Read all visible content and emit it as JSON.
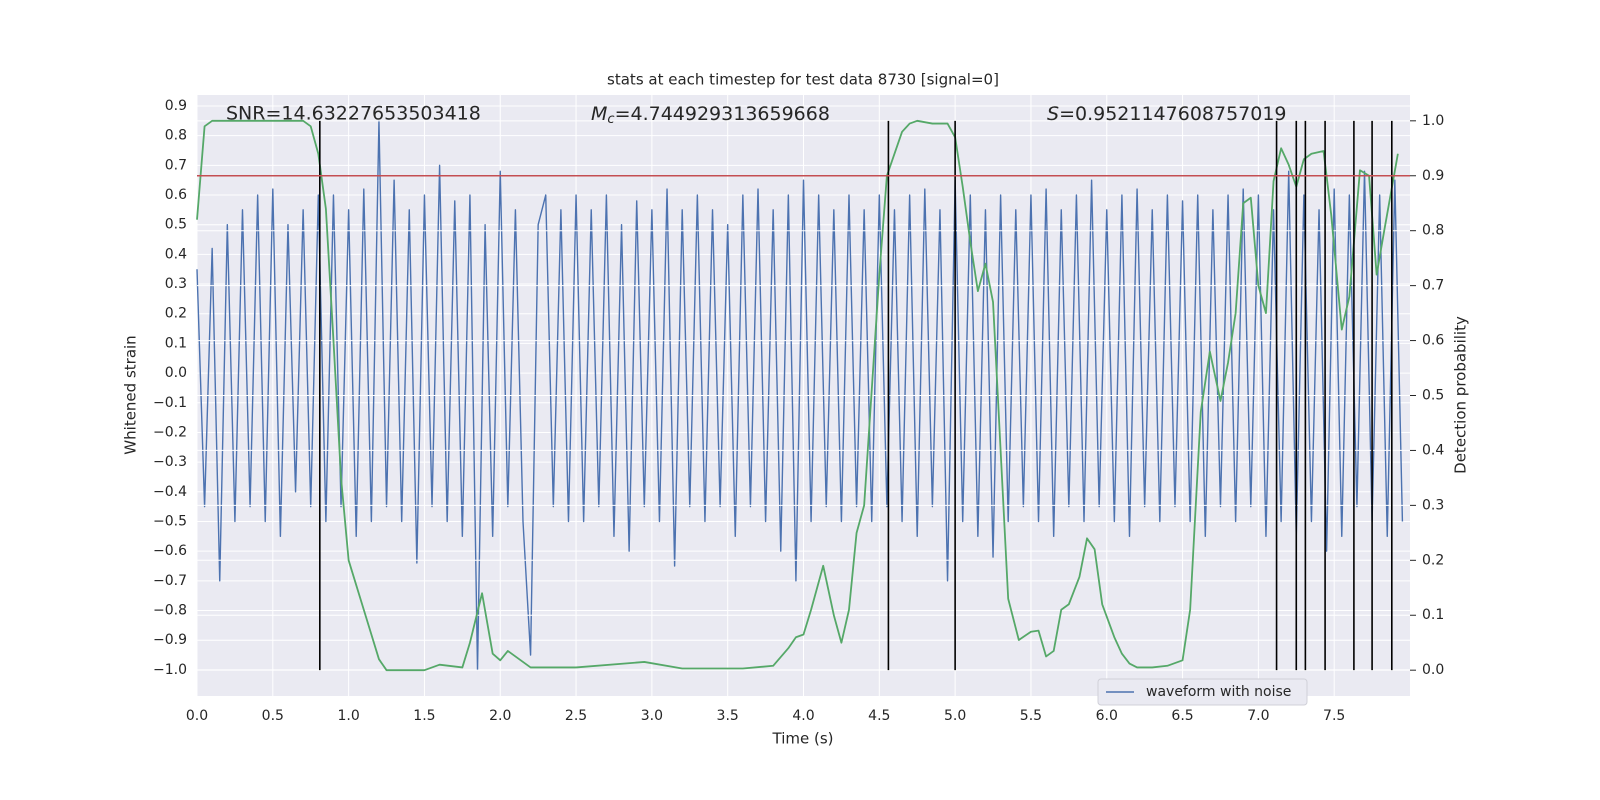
{
  "chart_data": {
    "type": "line",
    "title": "stats at each timestep for test data 8730 [signal=0]",
    "xlabel": "Time (s)",
    "ylabel": "Whitened strain",
    "y2label": "Detection probability",
    "annotations": [
      {
        "text": "SNR=14.63227653503418"
      },
      {
        "symbol": "M",
        "subscript": "c",
        "text": "=4.744929313659668"
      },
      {
        "symbol": "S",
        "text": "=0.9521147608757019"
      }
    ],
    "xlim": [
      0,
      8.0
    ],
    "ylim": [
      -1.088,
      0.937
    ],
    "y2lim": [
      -0.047,
      1.047
    ],
    "xticks": [
      {
        "value": 0,
        "label": "0.0"
      },
      0.5,
      {
        "value": 1,
        "label": "1.0"
      },
      1.5,
      {
        "value": 2,
        "label": "2.0"
      },
      2.5,
      {
        "value": 3,
        "label": "3.0"
      },
      3.5,
      {
        "value": 4,
        "label": "4.0"
      },
      4.5,
      {
        "value": 5,
        "label": "5.0"
      },
      5.5,
      {
        "value": 6,
        "label": "6.0"
      },
      6.5,
      {
        "value": 7,
        "label": "7.0"
      },
      7.5
    ],
    "yticks": [
      {
        "value": -1,
        "label": "−1.0"
      },
      {
        "value": -0.9,
        "label": "−0.9"
      },
      {
        "value": -0.8,
        "label": "−0.8"
      },
      {
        "value": -0.7,
        "label": "−0.7"
      },
      {
        "value": -0.6,
        "label": "−0.6"
      },
      {
        "value": -0.5,
        "label": "−0.5"
      },
      {
        "value": -0.4,
        "label": "−0.4"
      },
      {
        "value": -0.3,
        "label": "−0.3"
      },
      {
        "value": -0.2,
        "label": "−0.2"
      },
      {
        "value": -0.1,
        "label": "−0.1"
      },
      {
        "value": 0,
        "label": "0.0"
      },
      0.1,
      0.2,
      0.3,
      0.4,
      0.5,
      0.6,
      0.7,
      0.8,
      0.9
    ],
    "y2ticks": [
      {
        "value": 0,
        "label": "0.0"
      },
      0.1,
      0.2,
      0.3,
      0.4,
      0.5,
      0.6,
      0.7,
      0.8,
      0.9,
      {
        "value": 1,
        "label": "1.0"
      }
    ],
    "grid": true,
    "legend": "lower right",
    "series": [
      {
        "name": "waveform with noise",
        "color": "#4c72b0",
        "x": [
          0,
          0.05,
          0.1,
          0.15,
          0.2,
          0.25,
          0.3,
          0.35,
          0.4,
          0.45,
          0.5,
          0.55,
          0.6,
          0.65,
          0.7,
          0.75,
          0.8,
          0.85,
          0.9,
          0.95,
          1,
          1.05,
          1.1,
          1.15,
          1.2,
          1.25,
          1.3,
          1.35,
          1.4,
          1.45,
          1.5,
          1.55,
          1.6,
          1.65,
          1.7,
          1.75,
          1.8,
          1.85,
          1.9,
          1.95,
          2,
          2.05,
          2.1,
          2.15,
          2.2,
          2.25,
          2.3,
          2.35,
          2.4,
          2.45,
          2.5,
          2.55,
          2.6,
          2.65,
          2.7,
          2.75,
          2.8,
          2.85,
          2.9,
          2.95,
          3,
          3.05,
          3.1,
          3.15,
          3.2,
          3.25,
          3.3,
          3.35,
          3.4,
          3.45,
          3.5,
          3.55,
          3.6,
          3.65,
          3.7,
          3.75,
          3.8,
          3.85,
          3.9,
          3.95,
          4,
          4.05,
          4.1,
          4.15,
          4.2,
          4.25,
          4.3,
          4.35,
          4.4,
          4.45,
          4.5,
          4.55,
          4.6,
          4.65,
          4.7,
          4.75,
          4.8,
          4.85,
          4.9,
          4.95,
          5,
          5.05,
          5.1,
          5.15,
          5.2,
          5.25,
          5.3,
          5.35,
          5.4,
          5.45,
          5.5,
          5.55,
          5.6,
          5.65,
          5.7,
          5.75,
          5.8,
          5.85,
          5.9,
          5.95,
          6,
          6.05,
          6.1,
          6.15,
          6.2,
          6.25,
          6.3,
          6.35,
          6.4,
          6.45,
          6.5,
          6.55,
          6.6,
          6.65,
          6.7,
          6.75,
          6.8,
          6.85,
          6.9,
          6.95,
          7,
          7.05,
          7.1,
          7.15,
          7.2,
          7.25,
          7.3,
          7.35,
          7.4,
          7.45,
          7.5,
          7.55,
          7.6,
          7.65,
          7.7,
          7.75,
          7.8,
          7.85,
          7.9,
          7.95
        ],
        "values": [
          0.35,
          -0.45,
          0.42,
          -0.7,
          0.5,
          -0.5,
          0.55,
          -0.45,
          0.6,
          -0.5,
          0.62,
          -0.55,
          0.5,
          -0.4,
          0.55,
          -0.45,
          0.6,
          -0.5,
          0.6,
          -0.45,
          0.55,
          -0.55,
          0.62,
          -0.5,
          0.85,
          -0.45,
          0.65,
          -0.5,
          0.55,
          -0.64,
          0.6,
          -0.45,
          0.7,
          -0.5,
          0.58,
          -0.55,
          0.6,
          -1.0,
          0.5,
          -0.55,
          0.68,
          -0.45,
          0.55,
          -0.5,
          -0.95,
          0.5,
          0.6,
          -0.45,
          0.55,
          -0.5,
          0.6,
          -0.5,
          0.55,
          -0.45,
          0.6,
          -0.55,
          0.5,
          -0.6,
          0.58,
          -0.45,
          0.55,
          -0.5,
          0.62,
          -0.65,
          0.55,
          -0.45,
          0.6,
          -0.5,
          0.55,
          -0.45,
          0.5,
          -0.55,
          0.6,
          -0.45,
          0.62,
          -0.5,
          0.55,
          -0.6,
          0.6,
          -0.7,
          0.65,
          -0.5,
          0.6,
          -0.45,
          0.55,
          -0.5,
          0.6,
          -0.45,
          0.55,
          -0.5,
          0.6,
          -0.45,
          0.55,
          -0.5,
          0.6,
          -0.55,
          0.62,
          -0.45,
          0.55,
          -0.7,
          0.65,
          -0.5,
          0.6,
          -0.55,
          0.55,
          -0.62,
          0.6,
          -0.5,
          0.55,
          -0.45,
          0.6,
          -0.5,
          0.62,
          -0.55,
          0.55,
          -0.45,
          0.6,
          -0.5,
          0.65,
          -0.45,
          0.55,
          -0.5,
          0.6,
          -0.55,
          0.62,
          -0.45,
          0.55,
          -0.5,
          0.6,
          -0.45,
          0.58,
          -0.5,
          0.6,
          -0.55,
          0.55,
          -0.45,
          0.6,
          -0.5,
          0.62,
          -0.45,
          0.6,
          -0.55,
          0.55,
          -0.5,
          0.68,
          -0.55,
          0.6,
          -0.5,
          0.55,
          -0.6,
          0.62,
          -0.55,
          0.6,
          -0.45,
          0.68,
          -0.5,
          0.6,
          -0.55,
          0.65,
          -0.5
        ]
      },
      {
        "color": "#55a868",
        "axis": "y2",
        "x": [
          0,
          0.05,
          0.1,
          0.7,
          0.75,
          0.8,
          0.85,
          0.9,
          0.95,
          1,
          1.1,
          1.2,
          1.25,
          1.5,
          1.6,
          1.75,
          1.8,
          1.88,
          1.95,
          2,
          2.05,
          2.2,
          2.5,
          2.95,
          3.2,
          3.6,
          3.8,
          3.9,
          3.95,
          4,
          4.05,
          4.13,
          4.2,
          4.25,
          4.3,
          4.35,
          4.4,
          4.5,
          4.55,
          4.65,
          4.7,
          4.75,
          4.85,
          4.95,
          5,
          5.05,
          5.1,
          5.15,
          5.2,
          5.25,
          5.35,
          5.42,
          5.5,
          5.55,
          5.6,
          5.65,
          5.7,
          5.75,
          5.82,
          5.87,
          5.92,
          5.97,
          6.05,
          6.1,
          6.15,
          6.2,
          6.3,
          6.4,
          6.5,
          6.55,
          6.62,
          6.68,
          6.75,
          6.8,
          6.85,
          6.9,
          6.95,
          7,
          7.05,
          7.1,
          7.15,
          7.2,
          7.25,
          7.3,
          7.35,
          7.43,
          7.48,
          7.55,
          7.6,
          7.67,
          7.73,
          7.78,
          7.83,
          7.92
        ],
        "values": [
          0.82,
          0.99,
          1.0,
          1.0,
          0.99,
          0.94,
          0.84,
          0.6,
          0.35,
          0.2,
          0.11,
          0.02,
          0.0,
          0.0,
          0.01,
          0.005,
          0.05,
          0.14,
          0.03,
          0.018,
          0.035,
          0.005,
          0.005,
          0.015,
          0.003,
          0.003,
          0.008,
          0.04,
          0.06,
          0.065,
          0.11,
          0.19,
          0.1,
          0.05,
          0.11,
          0.25,
          0.3,
          0.72,
          0.9,
          0.98,
          0.995,
          1.0,
          0.995,
          0.995,
          0.97,
          0.88,
          0.78,
          0.69,
          0.74,
          0.67,
          0.13,
          0.055,
          0.07,
          0.072,
          0.025,
          0.035,
          0.11,
          0.12,
          0.17,
          0.24,
          0.22,
          0.12,
          0.06,
          0.03,
          0.012,
          0.005,
          0.005,
          0.008,
          0.018,
          0.11,
          0.47,
          0.58,
          0.49,
          0.56,
          0.65,
          0.85,
          0.86,
          0.7,
          0.65,
          0.89,
          0.95,
          0.92,
          0.88,
          0.93,
          0.94,
          0.945,
          0.83,
          0.62,
          0.68,
          0.91,
          0.9,
          0.72,
          0.8,
          0.94
        ]
      }
    ],
    "vlines": {
      "x": [
        0.81,
        4.56,
        5.0,
        7.12,
        7.25,
        7.31,
        7.44,
        7.63,
        7.75,
        7.88
      ],
      "ymin": 0,
      "ymax": 1,
      "color": "#000000",
      "axis": "y2"
    },
    "hline": {
      "y": 0.9,
      "color": "#c44e52",
      "axis": "y2"
    }
  }
}
